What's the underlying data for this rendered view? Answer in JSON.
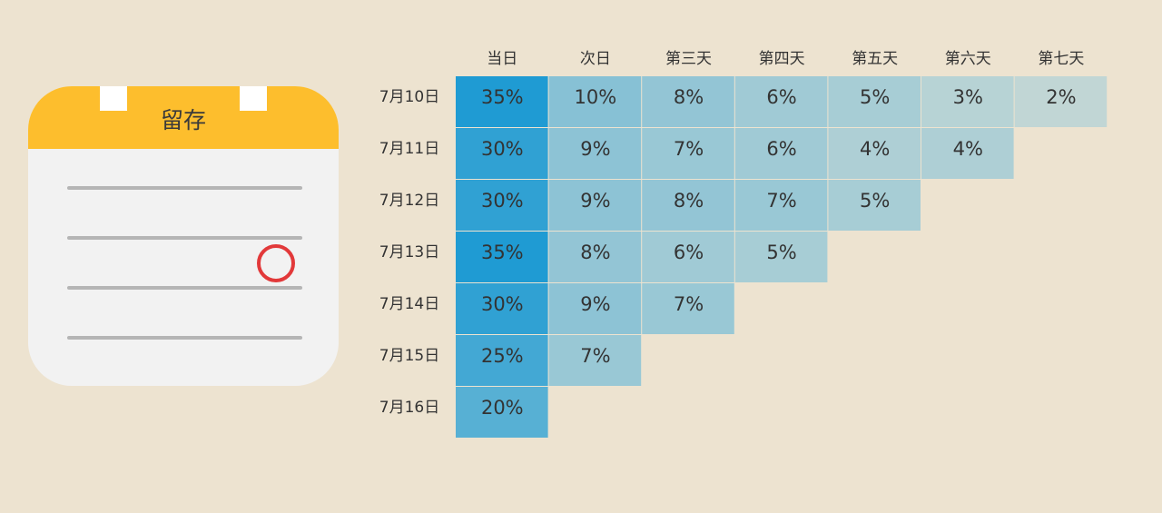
{
  "icon": {
    "title": "留存",
    "colors": {
      "header": "#fdbe2d",
      "body": "#f2f2f2",
      "lines": "#b5b5b5",
      "circle": "#e2393a"
    }
  },
  "chart_data": {
    "type": "heatmap",
    "title": "",
    "columns": [
      "当日",
      "次日",
      "第三天",
      "第四天",
      "第五天",
      "第六天",
      "第七天"
    ],
    "rows": [
      "7月10日",
      "7月11日",
      "7月12日",
      "7月13日",
      "7月14日",
      "7月15日",
      "7月16日"
    ],
    "values": [
      [
        35,
        10,
        8,
        6,
        5,
        3,
        2
      ],
      [
        30,
        9,
        7,
        6,
        4,
        4
      ],
      [
        30,
        9,
        8,
        7,
        5
      ],
      [
        35,
        8,
        6,
        5
      ],
      [
        30,
        9,
        7
      ],
      [
        25,
        7
      ],
      [
        20
      ]
    ],
    "unit": "%",
    "color_scale": {
      "low": "#e4e3d6",
      "high": "#1f9bd3"
    }
  }
}
